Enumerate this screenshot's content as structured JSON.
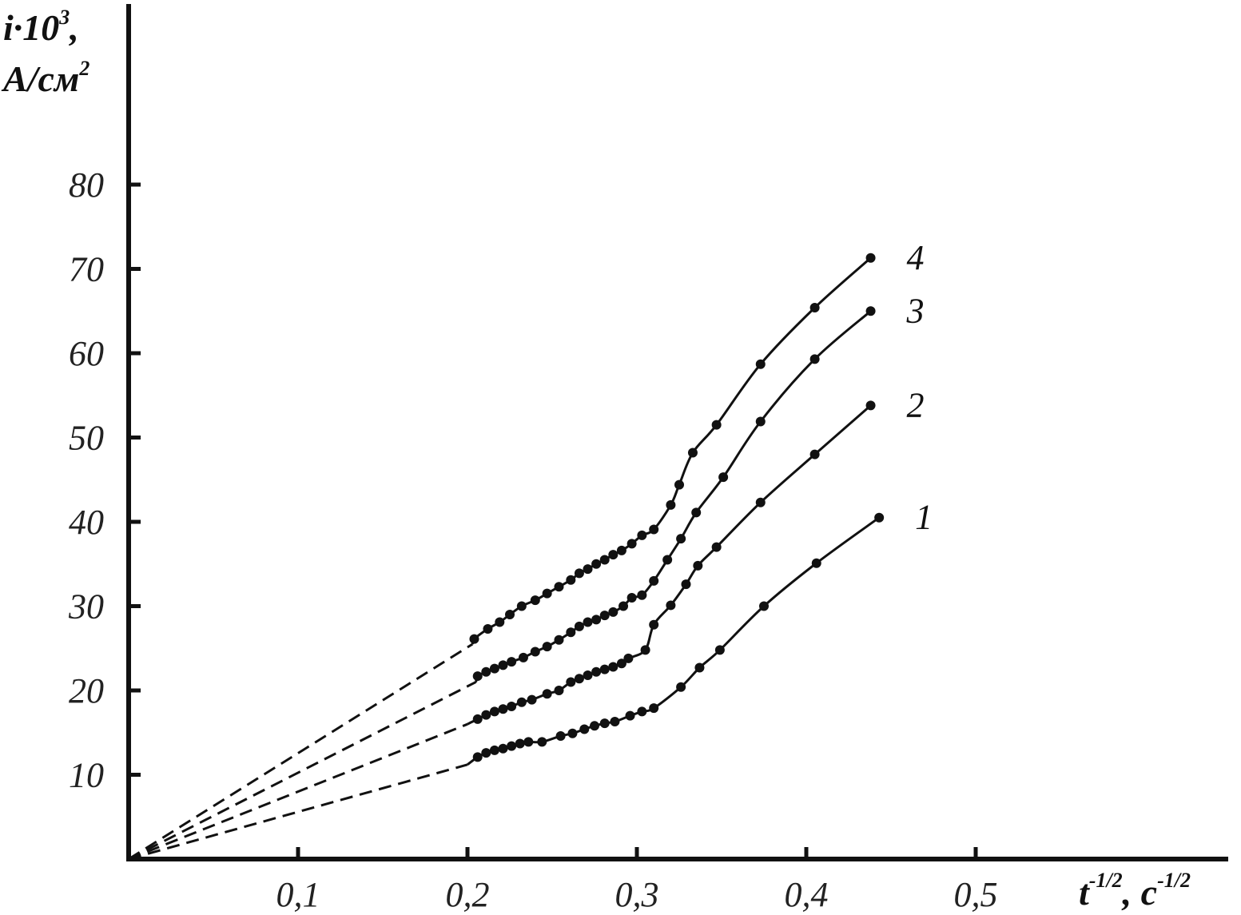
{
  "chart_data": {
    "type": "line",
    "title": "",
    "ylabel_main": "i·10",
    "ylabel_sup": "3",
    "ylabel_tail": ",",
    "ylabel_unit": "A/см",
    "ylabel_unit_sup": "2",
    "xlabel_main": "t",
    "xlabel_sup1": "-1/2",
    "xlabel_mid": ", c",
    "xlabel_sup2": "-1/2",
    "xlim": [
      0,
      0.5
    ],
    "ylim": [
      0,
      80
    ],
    "x_ticks": [
      {
        "value": 0.1,
        "label": "0,1"
      },
      {
        "value": 0.2,
        "label": "0,2"
      },
      {
        "value": 0.3,
        "label": "0,3"
      },
      {
        "value": 0.4,
        "label": "0,4"
      },
      {
        "value": 0.5,
        "label": "0,5"
      }
    ],
    "y_ticks": [
      {
        "value": 10,
        "label": "10"
      },
      {
        "value": 20,
        "label": "20"
      },
      {
        "value": 30,
        "label": "30"
      },
      {
        "value": 40,
        "label": "40"
      },
      {
        "value": 50,
        "label": "50"
      },
      {
        "value": 60,
        "label": "60"
      },
      {
        "value": 70,
        "label": "70"
      },
      {
        "value": 80,
        "label": "80"
      }
    ],
    "grid": false,
    "legend": "none",
    "series": [
      {
        "label": "1",
        "extrapolation": [
          [
            0,
            0
          ],
          [
            0.2,
            11.2
          ]
        ],
        "points": [
          [
            0.206,
            12.1
          ],
          [
            0.211,
            12.6
          ],
          [
            0.216,
            12.9
          ],
          [
            0.221,
            13.1
          ],
          [
            0.226,
            13.4
          ],
          [
            0.231,
            13.7
          ],
          [
            0.236,
            13.9
          ],
          [
            0.244,
            13.9
          ],
          [
            0.255,
            14.6
          ],
          [
            0.262,
            14.9
          ],
          [
            0.269,
            15.4
          ],
          [
            0.275,
            15.8
          ],
          [
            0.281,
            16.1
          ],
          [
            0.287,
            16.3
          ],
          [
            0.296,
            17.0
          ],
          [
            0.303,
            17.5
          ],
          [
            0.31,
            17.9
          ],
          [
            0.326,
            20.4
          ],
          [
            0.337,
            22.7
          ],
          [
            0.349,
            24.8
          ],
          [
            0.375,
            30.0
          ],
          [
            0.406,
            35.1
          ],
          [
            0.443,
            40.5
          ]
        ]
      },
      {
        "label": "2",
        "extrapolation": [
          [
            0,
            0
          ],
          [
            0.2,
            16.0
          ]
        ],
        "points": [
          [
            0.206,
            16.6
          ],
          [
            0.211,
            17.1
          ],
          [
            0.216,
            17.5
          ],
          [
            0.221,
            17.8
          ],
          [
            0.226,
            18.1
          ],
          [
            0.232,
            18.6
          ],
          [
            0.238,
            18.9
          ],
          [
            0.247,
            19.6
          ],
          [
            0.254,
            20.0
          ],
          [
            0.261,
            21.0
          ],
          [
            0.266,
            21.4
          ],
          [
            0.271,
            21.8
          ],
          [
            0.276,
            22.2
          ],
          [
            0.281,
            22.5
          ],
          [
            0.286,
            22.8
          ],
          [
            0.291,
            23.2
          ],
          [
            0.295,
            23.8
          ],
          [
            0.305,
            24.8
          ],
          [
            0.31,
            27.8
          ],
          [
            0.32,
            30.1
          ],
          [
            0.329,
            32.6
          ],
          [
            0.336,
            34.8
          ],
          [
            0.347,
            37.0
          ],
          [
            0.373,
            42.3
          ],
          [
            0.405,
            48.0
          ],
          [
            0.438,
            53.8
          ]
        ]
      },
      {
        "label": "3",
        "extrapolation": [
          [
            0,
            0
          ],
          [
            0.205,
            21.0
          ]
        ],
        "points": [
          [
            0.206,
            21.7
          ],
          [
            0.211,
            22.2
          ],
          [
            0.216,
            22.6
          ],
          [
            0.221,
            23.0
          ],
          [
            0.226,
            23.4
          ],
          [
            0.233,
            23.9
          ],
          [
            0.24,
            24.6
          ],
          [
            0.247,
            25.2
          ],
          [
            0.254,
            26.0
          ],
          [
            0.261,
            26.9
          ],
          [
            0.266,
            27.6
          ],
          [
            0.271,
            28.1
          ],
          [
            0.276,
            28.4
          ],
          [
            0.281,
            28.9
          ],
          [
            0.286,
            29.3
          ],
          [
            0.292,
            30.0
          ],
          [
            0.297,
            31.0
          ],
          [
            0.303,
            31.3
          ],
          [
            0.31,
            33.0
          ],
          [
            0.318,
            35.5
          ],
          [
            0.326,
            38.0
          ],
          [
            0.335,
            41.1
          ],
          [
            0.351,
            45.3
          ],
          [
            0.373,
            51.9
          ],
          [
            0.405,
            59.3
          ],
          [
            0.438,
            65.0
          ]
        ]
      },
      {
        "label": "4",
        "extrapolation": [
          [
            0,
            0
          ],
          [
            0.203,
            25.5
          ]
        ],
        "points": [
          [
            0.204,
            26.1
          ],
          [
            0.212,
            27.3
          ],
          [
            0.219,
            28.1
          ],
          [
            0.225,
            29.0
          ],
          [
            0.232,
            30.0
          ],
          [
            0.24,
            30.7
          ],
          [
            0.247,
            31.5
          ],
          [
            0.254,
            32.3
          ],
          [
            0.261,
            33.1
          ],
          [
            0.266,
            33.9
          ],
          [
            0.271,
            34.4
          ],
          [
            0.276,
            35.0
          ],
          [
            0.281,
            35.5
          ],
          [
            0.286,
            36.1
          ],
          [
            0.291,
            36.6
          ],
          [
            0.297,
            37.4
          ],
          [
            0.303,
            38.4
          ],
          [
            0.31,
            39.1
          ],
          [
            0.32,
            42.0
          ],
          [
            0.325,
            44.4
          ],
          [
            0.333,
            48.2
          ],
          [
            0.347,
            51.5
          ],
          [
            0.373,
            58.7
          ],
          [
            0.405,
            65.4
          ],
          [
            0.438,
            71.3
          ]
        ]
      }
    ]
  }
}
